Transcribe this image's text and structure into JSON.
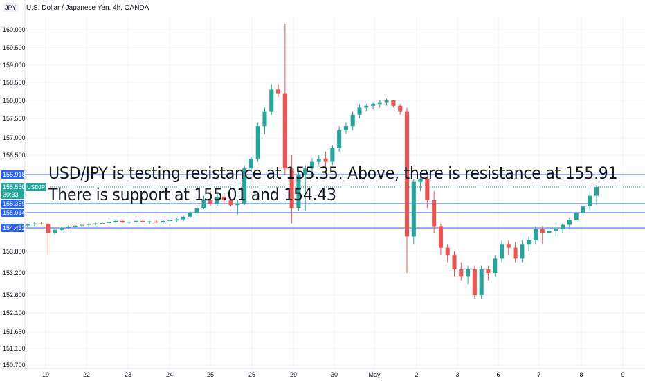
{
  "header": {
    "symbol_badge": "JPY",
    "title": "U.S. Dollar / Japanese Yen, 4h, OANDA"
  },
  "overlay": {
    "line1": "USD/JPY is testing resistance at 155.35. Above, there is resistance at 155.91",
    "line2": "There is support at 155.01 and 154.43"
  },
  "colors": {
    "up": "#26a69a",
    "down": "#ef5350",
    "level_line": "#2962ff",
    "level_label_bg": "#2962ff",
    "grid": "#f0f3fa",
    "axis_text": "#131722"
  },
  "chart_data": {
    "type": "candlestick",
    "symbol": "USDJPY",
    "timeframe": "4h",
    "y_axis": {
      "ticks": [
        "160.000",
        "159.500",
        "159.000",
        "158.500",
        "158.000",
        "157.500",
        "157.000",
        "156.500",
        "153.800",
        "153.200",
        "152.600",
        "152.100",
        "151.650",
        "151.150",
        "150.700"
      ]
    },
    "x_axis": {
      "ticks": [
        "19",
        "22",
        "23",
        "24",
        "25",
        "26",
        "29",
        "30",
        "May",
        "2",
        "3",
        "6",
        "7",
        "8",
        "9"
      ]
    },
    "price_labels": [
      {
        "text": "155.918",
        "kind": "level"
      },
      {
        "text": "155.550",
        "kind": "last"
      },
      {
        "text": "30:33",
        "kind": "countdown"
      },
      {
        "text": "155.359",
        "kind": "level"
      },
      {
        "text": "155.014",
        "kind": "level"
      },
      {
        "text": "154.432",
        "kind": "level"
      }
    ],
    "last_badge": "USDJPY",
    "levels": [
      155.918,
      155.359,
      155.014,
      154.432
    ],
    "last_price": 155.55,
    "candles": [
      [
        154.52,
        154.6,
        154.48,
        154.56
      ],
      [
        154.56,
        154.65,
        154.52,
        154.6
      ],
      [
        154.6,
        154.66,
        154.55,
        154.58
      ],
      [
        154.58,
        154.62,
        153.7,
        154.3
      ],
      [
        154.3,
        154.42,
        154.25,
        154.38
      ],
      [
        154.38,
        154.48,
        154.34,
        154.44
      ],
      [
        154.44,
        154.52,
        154.4,
        154.48
      ],
      [
        154.48,
        154.55,
        154.44,
        154.52
      ],
      [
        154.52,
        154.6,
        154.48,
        154.55
      ],
      [
        154.55,
        154.62,
        154.5,
        154.58
      ],
      [
        154.58,
        154.64,
        154.54,
        154.6
      ],
      [
        154.6,
        154.66,
        154.56,
        154.62
      ],
      [
        154.62,
        154.7,
        154.58,
        154.66
      ],
      [
        154.66,
        154.74,
        154.62,
        154.7
      ],
      [
        154.7,
        154.74,
        154.62,
        154.64
      ],
      [
        154.64,
        154.68,
        154.58,
        154.66
      ],
      [
        154.66,
        154.72,
        154.6,
        154.7
      ],
      [
        154.7,
        154.76,
        154.64,
        154.66
      ],
      [
        154.66,
        154.7,
        154.58,
        154.68
      ],
      [
        154.68,
        154.74,
        154.62,
        154.64
      ],
      [
        154.64,
        154.72,
        154.56,
        154.7
      ],
      [
        154.7,
        154.76,
        154.64,
        154.72
      ],
      [
        154.72,
        154.8,
        154.66,
        154.76
      ],
      [
        154.76,
        154.9,
        154.7,
        154.86
      ],
      [
        154.86,
        155.05,
        154.82,
        155.0
      ],
      [
        155.0,
        155.25,
        154.96,
        155.2
      ],
      [
        155.2,
        155.45,
        155.15,
        155.4
      ],
      [
        155.4,
        155.5,
        155.28,
        155.35
      ],
      [
        155.35,
        155.48,
        155.28,
        155.44
      ],
      [
        155.44,
        155.48,
        155.36,
        155.4
      ],
      [
        155.4,
        155.44,
        155.25,
        155.3
      ],
      [
        155.3,
        155.4,
        154.95,
        155.35
      ],
      [
        155.35,
        156.2,
        155.3,
        156.1
      ],
      [
        156.1,
        156.45,
        156.0,
        156.4
      ],
      [
        156.4,
        157.4,
        156.3,
        157.3
      ],
      [
        157.3,
        157.8,
        157.1,
        157.7
      ],
      [
        157.7,
        158.45,
        157.6,
        158.3
      ],
      [
        158.3,
        158.45,
        158.1,
        158.2
      ],
      [
        158.2,
        160.2,
        155.9,
        156.1
      ],
      [
        156.1,
        156.5,
        154.6,
        155.2
      ],
      [
        155.2,
        156.1,
        155.1,
        155.9
      ],
      [
        155.9,
        156.2,
        155.1,
        156.1
      ],
      [
        156.1,
        156.4,
        155.9,
        156.3
      ],
      [
        156.3,
        156.5,
        156.2,
        156.4
      ],
      [
        156.4,
        156.6,
        156.1,
        156.3
      ],
      [
        156.3,
        156.8,
        156.2,
        156.7
      ],
      [
        156.7,
        157.3,
        156.6,
        157.2
      ],
      [
        157.2,
        157.4,
        157.1,
        157.3
      ],
      [
        157.3,
        157.7,
        157.2,
        157.6
      ],
      [
        157.6,
        157.9,
        157.5,
        157.8
      ],
      [
        157.8,
        157.9,
        157.7,
        157.85
      ],
      [
        157.85,
        157.95,
        157.75,
        157.9
      ],
      [
        157.9,
        158.0,
        157.8,
        157.95
      ],
      [
        157.95,
        158.05,
        157.85,
        158.0
      ],
      [
        158.0,
        158.02,
        157.8,
        157.85
      ],
      [
        157.85,
        157.9,
        157.6,
        157.7
      ],
      [
        157.7,
        157.8,
        153.2,
        154.2
      ],
      [
        154.2,
        155.8,
        154.0,
        155.7
      ],
      [
        155.7,
        155.9,
        155.5,
        155.8
      ],
      [
        155.8,
        155.9,
        155.2,
        155.4
      ],
      [
        155.4,
        155.5,
        154.3,
        154.5
      ],
      [
        154.5,
        154.6,
        153.7,
        153.9
      ],
      [
        153.9,
        154.0,
        153.5,
        153.7
      ],
      [
        153.7,
        153.8,
        153.1,
        153.3
      ],
      [
        153.3,
        153.5,
        153.0,
        153.1
      ],
      [
        153.1,
        153.4,
        152.9,
        153.3
      ],
      [
        153.3,
        153.4,
        152.5,
        152.6
      ],
      [
        152.6,
        153.4,
        152.5,
        153.3
      ],
      [
        153.3,
        153.4,
        153.0,
        153.2
      ],
      [
        153.2,
        153.7,
        153.1,
        153.6
      ],
      [
        153.6,
        154.1,
        153.5,
        154.0
      ],
      [
        154.0,
        154.1,
        153.7,
        153.9
      ],
      [
        153.9,
        154.05,
        153.5,
        153.6
      ],
      [
        153.6,
        154.1,
        153.5,
        154.0
      ],
      [
        154.0,
        154.2,
        153.8,
        154.1
      ],
      [
        154.1,
        154.5,
        154.0,
        154.4
      ],
      [
        154.4,
        154.5,
        154.0,
        154.3
      ],
      [
        154.3,
        154.4,
        154.15,
        154.35
      ],
      [
        154.35,
        154.5,
        154.2,
        154.4
      ],
      [
        154.4,
        154.6,
        154.3,
        154.55
      ],
      [
        154.55,
        154.8,
        154.4,
        154.75
      ],
      [
        154.75,
        155.05,
        154.7,
        155.0
      ],
      [
        155.0,
        155.3,
        154.95,
        155.25
      ],
      [
        155.25,
        155.5,
        155.1,
        155.45
      ],
      [
        155.45,
        155.6,
        155.3,
        155.55
      ]
    ]
  }
}
